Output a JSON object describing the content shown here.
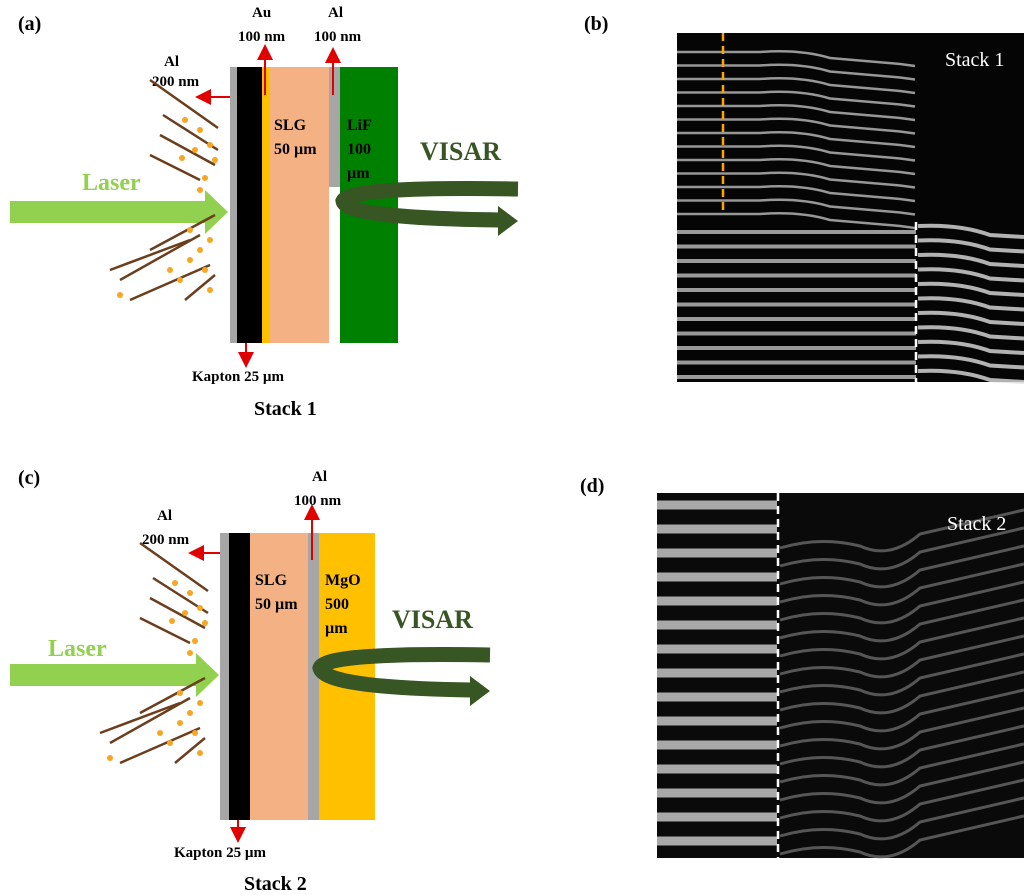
{
  "panel_a": {
    "label": "(a)",
    "au": [
      "Au",
      "100 nm"
    ],
    "al_top": [
      "Al",
      "100 nm"
    ],
    "al_left": [
      "Al",
      "200 nm"
    ],
    "slg": [
      "SLG",
      "50 µm"
    ],
    "window": [
      "LiF",
      "100",
      "µm"
    ],
    "visar": "VISAR",
    "laser": "Laser",
    "kapton": "Kapton 25 µm",
    "caption": "Stack 1"
  },
  "panel_b": {
    "label": "(b)",
    "title": "Stack 1"
  },
  "panel_c": {
    "label": "(c)",
    "al_top": [
      "Al",
      "100 nm"
    ],
    "al_left": [
      "Al",
      "200 nm"
    ],
    "slg": [
      "SLG",
      "50 µm"
    ],
    "window": [
      "MgO",
      "500",
      "µm"
    ],
    "visar": "VISAR",
    "laser": "Laser",
    "kapton": "Kapton 25 µm",
    "caption": "Stack 2"
  },
  "panel_d": {
    "label": "(d)",
    "title": "Stack 2"
  }
}
